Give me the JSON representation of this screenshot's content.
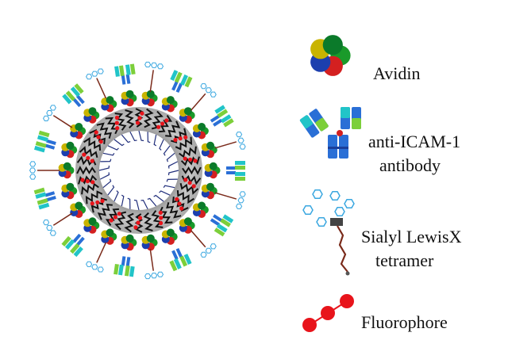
{
  "legend": {
    "avidin": {
      "label": "Avidin",
      "icon": "avidin-protein-icon"
    },
    "antibody": {
      "label_line1": "anti-ICAM-1",
      "label_line2": "antibody",
      "icon": "antibody-icon"
    },
    "sialyl": {
      "label_line1": "Sialyl LewisX",
      "label_line2": "tetramer",
      "icon": "sialyl-lewisx-icon"
    },
    "fluorophore": {
      "label": "Fluorophore",
      "icon": "fluorophore-icon"
    }
  },
  "colors": {
    "fluorophore": "#e8141b",
    "shell": "#b9b9b9",
    "shell_dark": "#8d8d8d",
    "polymer": "#111111",
    "inner_chain": "#1f2d7a",
    "avidin": [
      "#1a9a2a",
      "#d42020",
      "#1c3fae",
      "#c9b400",
      "#0b7a2a"
    ],
    "antibody_blue": "#2a6fd6",
    "antibody_cyan": "#21c4c8",
    "antibody_green": "#7ccf3a",
    "linker": "#7a2a1a",
    "sugar": "#3aa7e0"
  }
}
